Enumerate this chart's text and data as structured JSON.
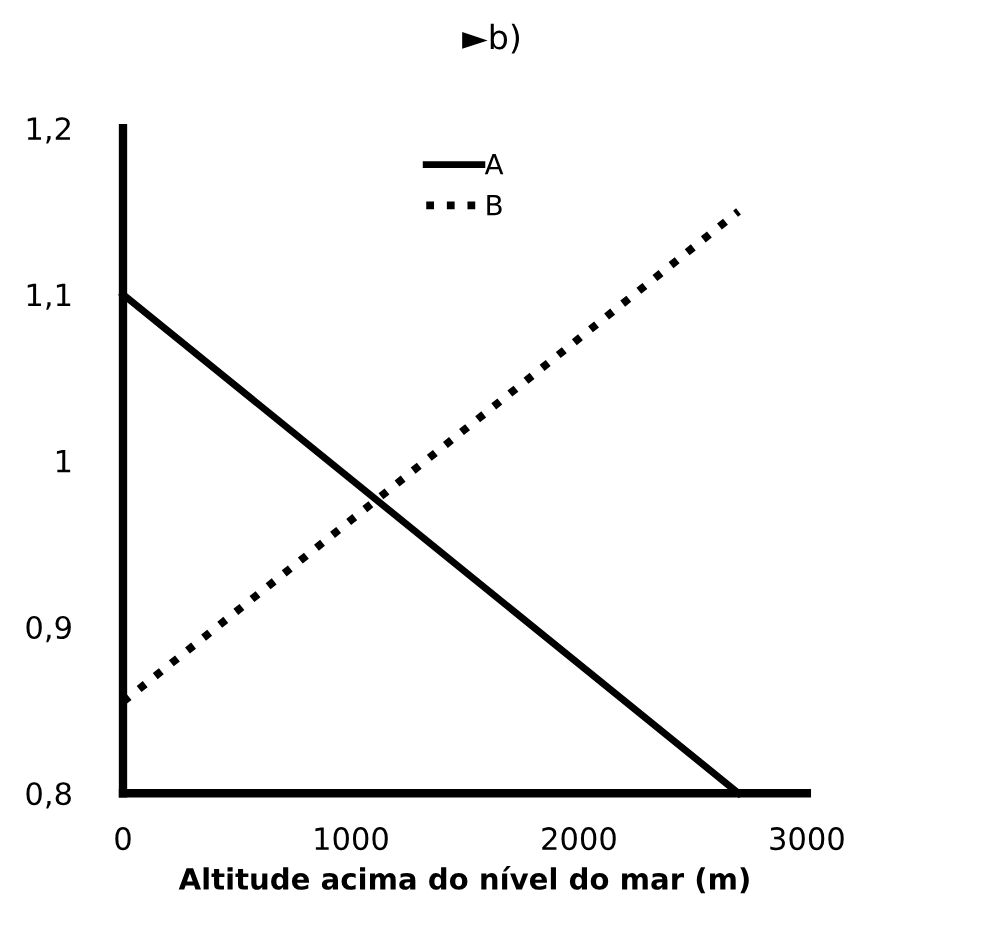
{
  "chart_data": {
    "type": "line",
    "title": "►b)",
    "xlabel": "Altitude acima do nível do mar (m)",
    "x": [
      0,
      2700
    ],
    "series": [
      {
        "name": "A",
        "color": "#000000",
        "line_style": "solid",
        "values": [
          1.1,
          0.8
        ]
      },
      {
        "name": "B",
        "color": "#000000",
        "line_style": "dotted",
        "values": [
          0.855,
          1.15
        ]
      }
    ],
    "xlim": [
      0,
      3000
    ],
    "xticks": [
      0,
      1000,
      2000,
      3000
    ],
    "ylim": [
      0.8,
      1.2
    ],
    "yticks": [
      {
        "value": 0.8,
        "label": "0,8"
      },
      {
        "value": 0.9,
        "label": "0,9"
      },
      {
        "value": 1,
        "label": "1"
      },
      {
        "value": 1.1,
        "label": "1,1"
      },
      {
        "value": 1.2,
        "label": "1,2"
      }
    ],
    "grid": false,
    "legend": "top",
    "marker": "none"
  }
}
